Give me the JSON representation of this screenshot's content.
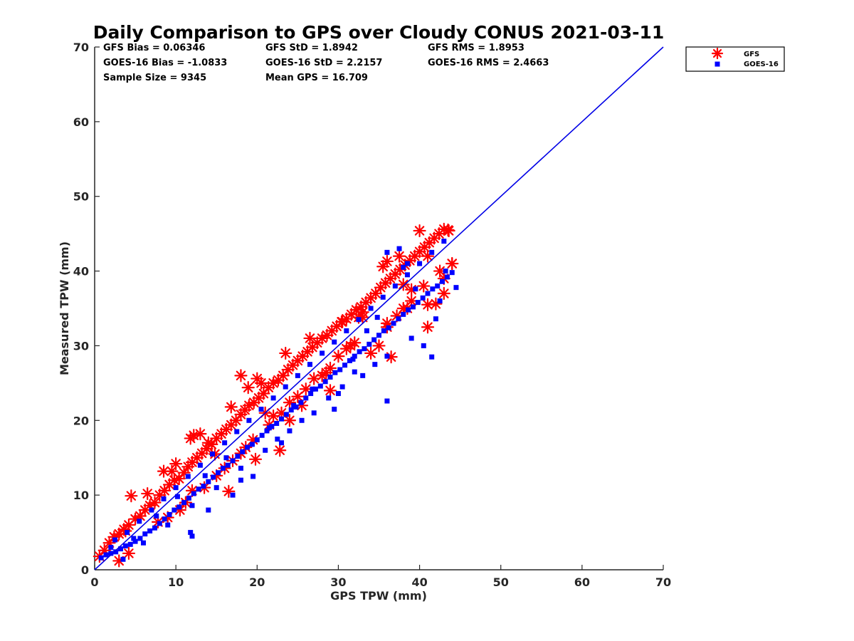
{
  "chart_data": {
    "type": "scatter",
    "title": "Daily Comparison to GPS over Cloudy CONUS 2021-03-11",
    "xlabel": "GPS TPW (mm)",
    "ylabel": "Measured TPW (mm)",
    "xlim": [
      0,
      70
    ],
    "ylim": [
      0,
      70
    ],
    "xticks": [
      "0",
      "10",
      "20",
      "30",
      "40",
      "50",
      "60",
      "70"
    ],
    "yticks": [
      "0",
      "10",
      "20",
      "30",
      "40",
      "50",
      "60",
      "70"
    ],
    "grid": false,
    "legend_position": "outside-top-right",
    "stats": [
      "GFS Bias = 0.06346",
      "GFS StD = 1.8942",
      "GFS RMS = 1.8953",
      "GOES-16 Bias = -1.0833",
      "GOES-16 StD = 2.2157",
      "GOES-16 RMS = 2.4663",
      "Sample Size = 9345",
      "Mean GPS = 16.709"
    ],
    "reference_line": {
      "x": [
        0,
        70
      ],
      "y": [
        0,
        70
      ],
      "color": "#0000e6"
    },
    "series": [
      {
        "name": "GFS",
        "marker": "asterisk",
        "color": "#ff0000",
        "x": [
          0.6,
          1.2,
          1.8,
          2.4,
          3.0,
          3.6,
          4.2,
          4.5,
          5.0,
          5.6,
          6.2,
          6.8,
          7.4,
          8.0,
          8.6,
          9.2,
          9.8,
          10.4,
          11.0,
          11.5,
          12.0,
          12.6,
          13.2,
          13.8,
          14.4,
          15.0,
          15.6,
          16.2,
          16.8,
          17.4,
          18.0,
          18.5,
          19.0,
          19.6,
          20.2,
          20.8,
          21.4,
          22.0,
          22.6,
          23.2,
          23.8,
          24.4,
          25.0,
          25.6,
          26.2,
          26.8,
          27.4,
          28.0,
          28.6,
          29.2,
          29.8,
          30.4,
          31.0,
          31.6,
          32.2,
          32.8,
          33.4,
          34.0,
          34.6,
          35.2,
          35.8,
          36.4,
          37.0,
          37.6,
          38.2,
          38.8,
          39.4,
          40.0,
          40.6,
          41.2,
          41.8,
          42.4,
          43.0,
          43.6,
          44.0,
          3.0,
          4.2,
          7.8,
          9.0,
          10.5,
          11.2,
          12.0,
          13.5,
          15.0,
          16.0,
          17.0,
          18.0,
          18.6,
          19.5,
          21.5,
          22.0,
          23.0,
          24.0,
          25.0,
          26.0,
          27.0,
          28.5,
          29.0,
          30.0,
          31.0,
          32.0,
          33.0,
          35.0,
          36.0,
          36.5,
          37.2,
          38.0,
          39.0,
          40.0,
          41.0,
          42.0,
          43.0,
          43.5,
          44.0,
          8.5,
          10.0,
          12.2,
          14.8,
          16.5,
          19.8,
          21.0,
          22.8,
          25.5,
          28.0,
          31.5,
          34.0,
          36.0,
          38.5,
          40.5,
          42.5,
          18.0,
          20.5,
          14.0,
          24.0,
          29.0,
          33.0,
          36.0,
          39.0,
          41.0,
          41.0,
          43.0,
          3.8,
          6.5,
          9.5,
          11.8,
          13.0,
          16.8,
          18.9,
          20.0,
          23.5,
          26.5,
          30.5,
          32.5,
          35.5,
          37.5,
          38.0
        ],
        "y": [
          1.8,
          2.6,
          3.6,
          4.4,
          4.8,
          5.4,
          6.0,
          9.9,
          6.8,
          7.2,
          8.0,
          8.6,
          9.0,
          10.0,
          10.6,
          11.4,
          12.0,
          12.2,
          13.0,
          13.8,
          14.4,
          15.0,
          15.6,
          16.2,
          16.8,
          17.6,
          18.2,
          18.8,
          19.4,
          20.0,
          20.8,
          21.4,
          22.0,
          22.4,
          23.0,
          23.6,
          24.4,
          25.0,
          25.4,
          26.0,
          26.8,
          27.4,
          28.0,
          28.6,
          29.2,
          29.8,
          30.4,
          31.0,
          31.4,
          32.0,
          32.6,
          33.2,
          33.6,
          34.2,
          34.8,
          35.2,
          35.8,
          36.4,
          37.0,
          37.8,
          38.4,
          39.0,
          39.6,
          40.2,
          40.8,
          41.4,
          42.0,
          42.6,
          43.2,
          43.8,
          44.4,
          45.0,
          45.6,
          45.4,
          41.0,
          1.2,
          2.2,
          6.4,
          7.0,
          8.0,
          9.0,
          10.6,
          11.0,
          12.6,
          13.6,
          14.6,
          15.6,
          16.4,
          17.4,
          19.4,
          20.6,
          21.0,
          22.4,
          23.2,
          24.2,
          25.6,
          26.4,
          27.0,
          28.6,
          29.6,
          30.4,
          33.8,
          30.0,
          32.5,
          28.5,
          34.0,
          35.0,
          36.0,
          45.4,
          32.5,
          35.6,
          37.0,
          45.5,
          41.0,
          13.2,
          14.2,
          18.0,
          15.5,
          10.5,
          14.8,
          21.0,
          16.0,
          22.0,
          26.0,
          30.0,
          29.0,
          33.0,
          35.0,
          38.0,
          40.0,
          26.0,
          25.0,
          17.0,
          20.0,
          24.0,
          34.5,
          41.3,
          37.5,
          35.5,
          42.0,
          39.0,
          5.2,
          10.2,
          13.2,
          17.6,
          18.2,
          21.8,
          24.4,
          25.6,
          29.0,
          31.0,
          33.2,
          33.8,
          40.6,
          42.0,
          38.2
        ]
      },
      {
        "name": "GOES-16",
        "marker": "square",
        "color": "#0000ff",
        "x": [
          0.8,
          1.4,
          2.0,
          2.6,
          3.2,
          3.8,
          4.4,
          5.0,
          5.6,
          6.2,
          6.8,
          7.4,
          8.0,
          8.6,
          9.2,
          9.8,
          10.4,
          11.0,
          11.6,
          12.2,
          12.8,
          13.4,
          14.0,
          14.6,
          15.2,
          15.8,
          16.4,
          17.0,
          17.6,
          18.2,
          18.8,
          19.4,
          20.0,
          20.6,
          21.2,
          21.8,
          22.4,
          23.0,
          23.6,
          24.2,
          24.8,
          25.4,
          26.0,
          26.6,
          27.2,
          27.8,
          28.4,
          29.0,
          29.6,
          30.2,
          30.8,
          31.4,
          32.0,
          32.6,
          33.2,
          33.8,
          34.4,
          35.0,
          35.6,
          36.2,
          36.8,
          37.4,
          38.0,
          38.6,
          39.2,
          39.8,
          40.4,
          41.0,
          41.6,
          42.2,
          42.8,
          43.4,
          44.0,
          2.5,
          4.0,
          5.5,
          7.0,
          8.5,
          10.0,
          11.5,
          13.0,
          14.5,
          16.0,
          17.5,
          19.0,
          20.5,
          22.0,
          23.5,
          25.0,
          26.5,
          28.0,
          29.5,
          31.0,
          32.5,
          34.0,
          35.5,
          37.0,
          38.5,
          40.0,
          41.5,
          43.0,
          3.5,
          6.0,
          9.0,
          12.0,
          15.0,
          18.0,
          21.0,
          24.0,
          27.0,
          30.0,
          33.0,
          36.0,
          39.0,
          42.0,
          11.8,
          14.0,
          17.0,
          19.5,
          22.5,
          25.5,
          28.8,
          30.5,
          32.0,
          34.5,
          36.0,
          37.5,
          40.5,
          42.5,
          44.5,
          36.0,
          38.0,
          41.5,
          12.0,
          18.0,
          23.0,
          29.5,
          33.5,
          38.5,
          43.2,
          2.0,
          4.8,
          7.6,
          10.2,
          13.6,
          16.2,
          21.5,
          24.5,
          26.8,
          31.8,
          34.8,
          39.5
        ],
        "y": [
          1.6,
          2.0,
          2.2,
          2.4,
          2.8,
          3.2,
          3.4,
          3.8,
          4.2,
          4.8,
          5.2,
          5.6,
          6.2,
          6.8,
          7.4,
          8.0,
          8.4,
          9.0,
          9.6,
          10.2,
          10.8,
          11.2,
          11.8,
          12.4,
          13.0,
          13.6,
          14.0,
          14.6,
          15.2,
          15.8,
          16.4,
          16.8,
          17.4,
          18.0,
          18.6,
          19.2,
          19.6,
          20.2,
          20.8,
          21.4,
          21.8,
          22.4,
          23.0,
          23.6,
          24.2,
          24.6,
          25.2,
          25.8,
          26.4,
          26.8,
          27.4,
          28.0,
          28.6,
          29.2,
          29.6,
          30.2,
          30.8,
          31.4,
          32.0,
          32.4,
          33.0,
          33.6,
          34.2,
          34.8,
          35.2,
          35.8,
          36.4,
          37.0,
          37.6,
          38.0,
          38.6,
          39.2,
          39.8,
          4.0,
          5.0,
          6.5,
          8.0,
          9.5,
          11.0,
          12.5,
          14.0,
          15.5,
          17.0,
          18.5,
          20.0,
          21.5,
          23.0,
          24.5,
          26.0,
          27.5,
          29.0,
          30.5,
          32.0,
          33.5,
          35.0,
          36.5,
          38.0,
          39.5,
          41.0,
          42.5,
          44.0,
          1.4,
          3.6,
          6.0,
          8.6,
          11.0,
          13.6,
          16.0,
          18.6,
          21.0,
          23.6,
          26.0,
          28.6,
          31.0,
          33.6,
          5.0,
          8.0,
          10.0,
          12.5,
          17.5,
          20.0,
          23.0,
          24.5,
          26.5,
          27.5,
          22.6,
          43.0,
          30.0,
          36.0,
          37.8,
          42.5,
          40.5,
          28.5,
          4.5,
          12.0,
          17.0,
          21.5,
          32.0,
          41.0,
          40.0,
          3.0,
          4.2,
          7.2,
          9.8,
          12.6,
          15.0,
          19.0,
          22.0,
          24.2,
          28.2,
          33.8,
          37.6
        ]
      }
    ]
  }
}
